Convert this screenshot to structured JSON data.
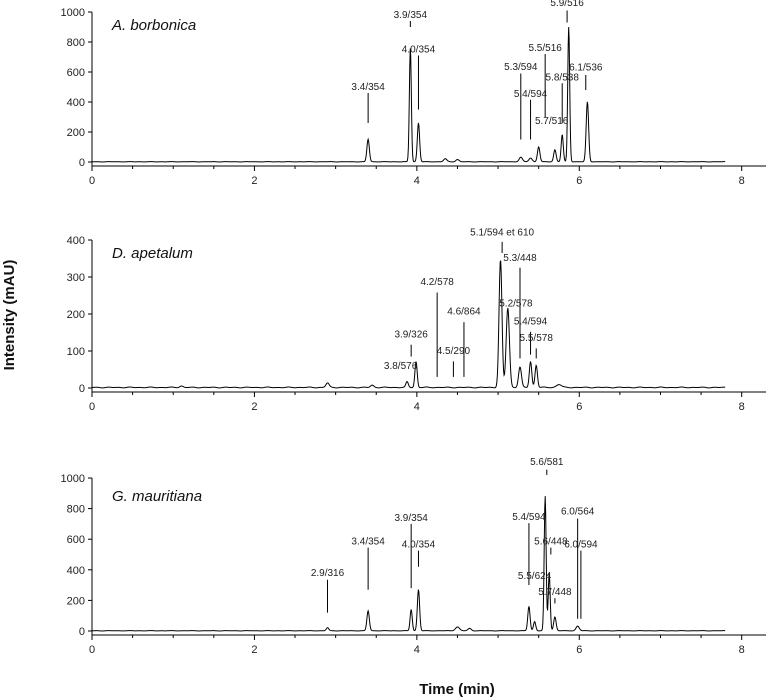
{
  "chart_data": {
    "type": "line",
    "xlabel": "Time (min)",
    "ylabel": "Intensity (mAU)",
    "x_ticks": [
      0,
      2,
      4,
      6,
      8
    ],
    "xlim": [
      0,
      8.25
    ],
    "panels": [
      {
        "title": "A. borbonica",
        "ylim": [
          0,
          1000
        ],
        "y_ticks": [
          0,
          200,
          400,
          600,
          800,
          1000
        ],
        "peaks": [
          {
            "t": 3.4,
            "h": 150,
            "w": 0.015
          },
          {
            "t": 3.92,
            "h": 760,
            "w": 0.012
          },
          {
            "t": 4.02,
            "h": 260,
            "w": 0.014
          },
          {
            "t": 4.35,
            "h": 20,
            "w": 0.02
          },
          {
            "t": 4.5,
            "h": 15,
            "w": 0.02
          },
          {
            "t": 5.28,
            "h": 30,
            "w": 0.02
          },
          {
            "t": 5.4,
            "h": 25,
            "w": 0.02
          },
          {
            "t": 5.5,
            "h": 100,
            "w": 0.015
          },
          {
            "t": 5.7,
            "h": 80,
            "w": 0.015
          },
          {
            "t": 5.79,
            "h": 180,
            "w": 0.013
          },
          {
            "t": 5.87,
            "h": 900,
            "w": 0.012
          },
          {
            "t": 6.1,
            "h": 400,
            "w": 0.015
          }
        ],
        "labels": [
          {
            "text": "3.9/354",
            "t": 3.92,
            "label_y": 960,
            "line_top": 940,
            "line_bottom": 900
          },
          {
            "text": "4.0/354",
            "t": 4.02,
            "label_y": 730,
            "line_top": 710,
            "line_bottom": 350
          },
          {
            "text": "3.4/354",
            "t": 3.4,
            "label_y": 480,
            "line_top": 460,
            "line_bottom": 260
          },
          {
            "text": "5.9/516",
            "t": 5.85,
            "label_y": 1040,
            "line_top": 1010,
            "line_bottom": 930
          },
          {
            "text": "5.5/516",
            "t": 5.58,
            "label_y": 740,
            "line_top": 720,
            "line_bottom": 300
          },
          {
            "text": "5.3/594",
            "t": 5.28,
            "label_y": 615,
            "line_top": 590,
            "line_bottom": 150
          },
          {
            "text": "5.4/594",
            "t": 5.4,
            "label_y": 435,
            "line_top": 415,
            "line_bottom": 150
          },
          {
            "text": "5.8/538",
            "t": 5.79,
            "label_y": 545,
            "line_top": 525,
            "line_bottom": 260
          },
          {
            "text": "6.1/536",
            "t": 6.08,
            "label_y": 610,
            "line_top": 580,
            "line_bottom": 480
          },
          {
            "text": "5.7/516",
            "t": 5.66,
            "label_y": 255,
            "line_top": 0,
            "line_bottom": 0
          }
        ]
      },
      {
        "title": "D. apetalum",
        "ylim": [
          0,
          400
        ],
        "y_ticks": [
          0,
          100,
          200,
          300,
          400
        ],
        "peaks": [
          {
            "t": 1.1,
            "h": 4,
            "w": 0.02
          },
          {
            "t": 2.9,
            "h": 12,
            "w": 0.02
          },
          {
            "t": 3.45,
            "h": 6,
            "w": 0.02
          },
          {
            "t": 3.88,
            "h": 15,
            "w": 0.015
          },
          {
            "t": 3.99,
            "h": 70,
            "w": 0.014
          },
          {
            "t": 5.03,
            "h": 345,
            "w": 0.018
          },
          {
            "t": 5.12,
            "h": 215,
            "w": 0.02
          },
          {
            "t": 5.27,
            "h": 55,
            "w": 0.018
          },
          {
            "t": 5.4,
            "h": 70,
            "w": 0.015
          },
          {
            "t": 5.47,
            "h": 60,
            "w": 0.015
          },
          {
            "t": 5.75,
            "h": 8,
            "w": 0.03
          }
        ],
        "labels": [
          {
            "text": "5.1/594 et 610",
            "t": 5.05,
            "label_y": 412,
            "line_top": 395,
            "line_bottom": 365
          },
          {
            "text": "5.3/448",
            "t": 5.27,
            "label_y": 343,
            "line_top": 325,
            "line_bottom": 80
          },
          {
            "text": "4.2/578",
            "t": 4.25,
            "label_y": 278,
            "line_top": 258,
            "line_bottom": 30
          },
          {
            "text": "5.2/578",
            "t": 5.22,
            "label_y": 220,
            "line_top": 0,
            "line_bottom": 0
          },
          {
            "text": "4.6/864",
            "t": 4.58,
            "label_y": 198,
            "line_top": 178,
            "line_bottom": 30
          },
          {
            "text": "5.4/594",
            "t": 5.4,
            "label_y": 172,
            "line_top": 152,
            "line_bottom": 90
          },
          {
            "text": "5.5/578",
            "t": 5.47,
            "label_y": 127,
            "line_top": 107,
            "line_bottom": 80
          },
          {
            "text": "3.9/326",
            "t": 3.93,
            "label_y": 137,
            "line_top": 117,
            "line_bottom": 85
          },
          {
            "text": "4.5/290",
            "t": 4.45,
            "label_y": 92,
            "line_top": 72,
            "line_bottom": 30
          },
          {
            "text": "3.8/576",
            "t": 3.8,
            "label_y": 52,
            "line_top": 0,
            "line_bottom": 0
          }
        ]
      },
      {
        "title": "G. mauritiana",
        "ylim": [
          0,
          1000
        ],
        "y_ticks": [
          0,
          200,
          400,
          600,
          800,
          1000
        ],
        "peaks": [
          {
            "t": 2.9,
            "h": 20,
            "w": 0.015
          },
          {
            "t": 3.4,
            "h": 130,
            "w": 0.015
          },
          {
            "t": 3.93,
            "h": 140,
            "w": 0.013
          },
          {
            "t": 4.02,
            "h": 270,
            "w": 0.014
          },
          {
            "t": 4.5,
            "h": 25,
            "w": 0.025
          },
          {
            "t": 4.65,
            "h": 15,
            "w": 0.02
          },
          {
            "t": 5.38,
            "h": 160,
            "w": 0.014
          },
          {
            "t": 5.45,
            "h": 60,
            "w": 0.014
          },
          {
            "t": 5.58,
            "h": 880,
            "w": 0.012
          },
          {
            "t": 5.63,
            "h": 380,
            "w": 0.012
          },
          {
            "t": 5.7,
            "h": 90,
            "w": 0.015
          },
          {
            "t": 5.98,
            "h": 30,
            "w": 0.02
          }
        ],
        "labels": [
          {
            "text": "5.6/581",
            "t": 5.6,
            "label_y": 1085,
            "line_top": 1055,
            "line_bottom": 1020
          },
          {
            "text": "3.9/354",
            "t": 3.93,
            "label_y": 720,
            "line_top": 700,
            "line_bottom": 280
          },
          {
            "text": "6.0/564",
            "t": 5.98,
            "label_y": 760,
            "line_top": 735,
            "line_bottom": 80
          },
          {
            "text": "5.4/594",
            "t": 5.38,
            "label_y": 725,
            "line_top": 705,
            "line_bottom": 300
          },
          {
            "text": "5.6/448",
            "t": 5.65,
            "label_y": 565,
            "line_top": 545,
            "line_bottom": 500
          },
          {
            "text": "6.0/594",
            "t": 6.02,
            "label_y": 545,
            "line_top": 525,
            "line_bottom": 80
          },
          {
            "text": "3.4/354",
            "t": 3.4,
            "label_y": 565,
            "line_top": 545,
            "line_bottom": 270
          },
          {
            "text": "4.0/354",
            "t": 4.02,
            "label_y": 545,
            "line_top": 525,
            "line_bottom": 420
          },
          {
            "text": "2.9/316",
            "t": 2.9,
            "label_y": 360,
            "line_top": 335,
            "line_bottom": 120
          },
          {
            "text": "5.5/624",
            "t": 5.45,
            "label_y": 340,
            "line_top": 0,
            "line_bottom": 0
          },
          {
            "text": "5.7/448",
            "t": 5.7,
            "label_y": 235,
            "line_top": 215,
            "line_bottom": 180
          }
        ]
      }
    ]
  }
}
